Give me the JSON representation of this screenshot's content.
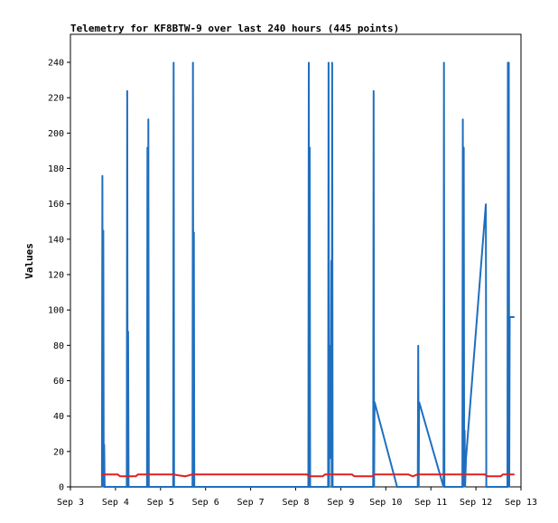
{
  "chart_data": {
    "type": "line",
    "title": "Telemetry for KF8BTW-9 over last 240 hours (445 points)",
    "ylabel": "Values",
    "xlabel": "",
    "ylim": [
      0,
      250
    ],
    "xlim": [
      3.0,
      13.0
    ],
    "y_ticks": [
      0,
      20,
      40,
      60,
      80,
      100,
      120,
      140,
      160,
      180,
      200,
      220,
      240
    ],
    "x_ticks": [
      {
        "x": 3,
        "label": "Sep 3"
      },
      {
        "x": 4,
        "label": "Sep 4"
      },
      {
        "x": 5,
        "label": "Sep 5"
      },
      {
        "x": 6,
        "label": "Sep 6"
      },
      {
        "x": 7,
        "label": "Sep 7"
      },
      {
        "x": 8,
        "label": "Sep 8"
      },
      {
        "x": 9,
        "label": "Sep 9"
      },
      {
        "x": 10,
        "label": "Sep 10"
      },
      {
        "x": 11,
        "label": "Sep 11"
      },
      {
        "x": 12,
        "label": "Sep 12"
      },
      {
        "x": 13,
        "label": "Sep 13"
      }
    ],
    "grid": false,
    "legend": "none",
    "series": [
      {
        "color": "#1f6fbf",
        "points": [
          [
            3.7,
            0
          ],
          [
            3.71,
            176
          ],
          [
            3.72,
            0
          ],
          [
            3.73,
            145
          ],
          [
            3.74,
            0
          ],
          [
            3.75,
            24
          ],
          [
            3.76,
            0
          ],
          [
            4.25,
            0
          ],
          [
            4.26,
            224
          ],
          [
            4.27,
            0
          ],
          [
            4.28,
            88
          ],
          [
            4.29,
            0
          ],
          [
            4.7,
            0
          ],
          [
            4.71,
            192
          ],
          [
            4.72,
            0
          ],
          [
            4.73,
            208
          ],
          [
            4.74,
            0
          ],
          [
            5.28,
            0
          ],
          [
            5.29,
            240
          ],
          [
            5.3,
            0
          ],
          [
            5.71,
            0
          ],
          [
            5.72,
            240
          ],
          [
            5.73,
            0
          ],
          [
            5.74,
            144
          ],
          [
            5.75,
            0
          ],
          [
            8.28,
            0
          ],
          [
            8.29,
            240
          ],
          [
            8.3,
            0
          ],
          [
            8.31,
            192
          ],
          [
            8.32,
            0
          ],
          [
            8.72,
            0
          ],
          [
            8.73,
            240
          ],
          [
            8.74,
            0
          ],
          [
            8.75,
            80
          ],
          [
            8.76,
            16
          ],
          [
            8.77,
            64
          ],
          [
            8.78,
            48
          ],
          [
            8.79,
            128
          ],
          [
            8.8,
            0
          ],
          [
            8.81,
            240
          ],
          [
            8.82,
            0
          ],
          [
            9.72,
            0
          ],
          [
            9.73,
            224
          ],
          [
            9.74,
            0
          ],
          [
            9.75,
            48
          ],
          [
            10.25,
            0
          ],
          [
            10.71,
            0
          ],
          [
            10.72,
            80
          ],
          [
            10.73,
            0
          ],
          [
            10.74,
            48
          ],
          [
            11.28,
            0
          ],
          [
            11.29,
            240
          ],
          [
            11.3,
            0
          ],
          [
            11.7,
            0
          ],
          [
            11.71,
            208
          ],
          [
            11.72,
            0
          ],
          [
            11.73,
            192
          ],
          [
            11.74,
            0
          ],
          [
            11.75,
            32
          ],
          [
            11.76,
            0
          ],
          [
            11.78,
            16
          ],
          [
            12.22,
            160
          ],
          [
            12.23,
            0
          ],
          [
            12.7,
            0
          ],
          [
            12.71,
            240
          ],
          [
            12.72,
            0
          ],
          [
            12.73,
            240
          ],
          [
            12.74,
            0
          ],
          [
            12.75,
            96
          ],
          [
            12.85,
            96
          ]
        ]
      },
      {
        "color": "#e02020",
        "points": [
          [
            3.7,
            7
          ],
          [
            4.05,
            7
          ],
          [
            4.1,
            6
          ],
          [
            4.45,
            6
          ],
          [
            4.5,
            7
          ],
          [
            5.3,
            7
          ],
          [
            5.4,
            6.5
          ],
          [
            5.55,
            6
          ],
          [
            5.7,
            7
          ],
          [
            8.25,
            7
          ],
          [
            8.3,
            6
          ],
          [
            8.6,
            6
          ],
          [
            8.65,
            7
          ],
          [
            9.25,
            7
          ],
          [
            9.3,
            6
          ],
          [
            9.7,
            6
          ],
          [
            9.75,
            7
          ],
          [
            10.5,
            7
          ],
          [
            10.6,
            6
          ],
          [
            10.7,
            7
          ],
          [
            11.45,
            7
          ],
          [
            11.5,
            7
          ],
          [
            12.2,
            7
          ],
          [
            12.25,
            6
          ],
          [
            12.55,
            6
          ],
          [
            12.6,
            7
          ],
          [
            12.85,
            7
          ]
        ]
      }
    ]
  }
}
